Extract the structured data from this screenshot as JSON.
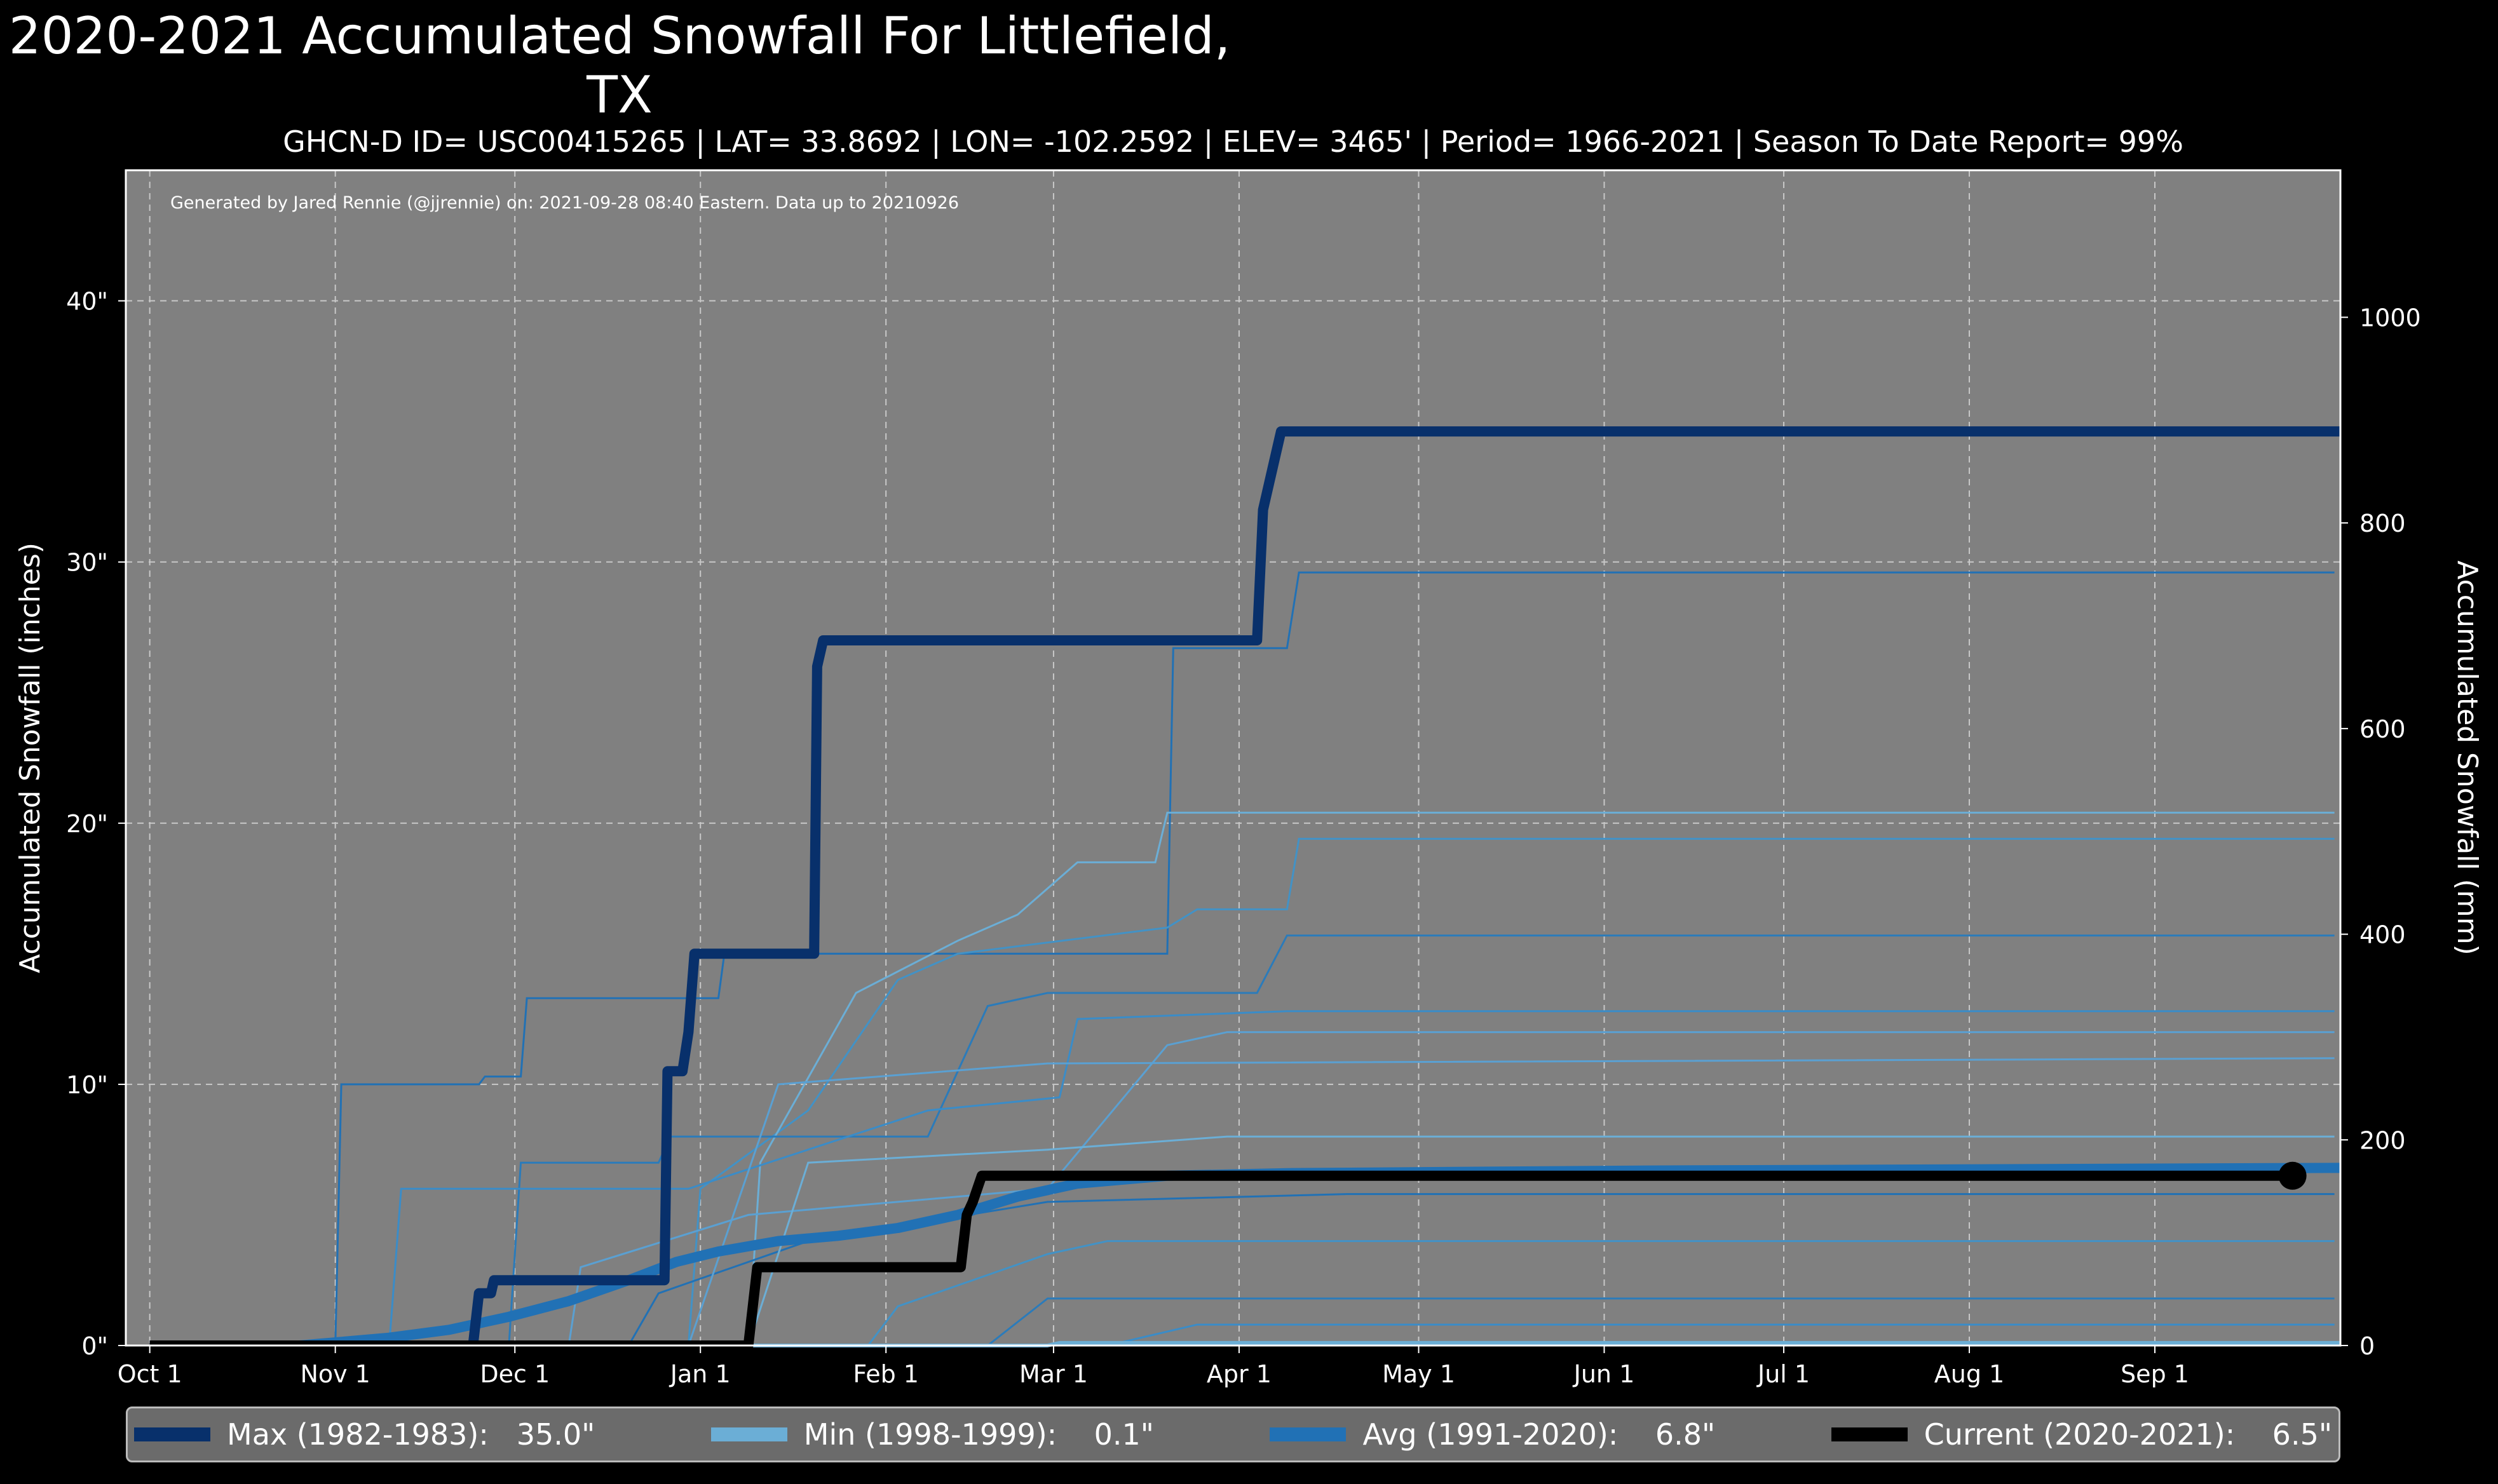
{
  "chart_data": {
    "type": "line",
    "title": "2020-2021 Accumulated Snowfall For Littlefield, TX",
    "subtitle": "GHCN-D ID= USC00415265 | LAT= 33.8692 | LON= -102.2592 | ELEV= 3465' | Period= 1966-2021 | Season To Date Report= 99%",
    "annotation": "Generated by Jared Rennie (@jjrennie) on: 2021-09-28 08:40 Eastern. Data up to 20210926",
    "ylabel": "Accumulated Snowfall (inches)",
    "ylabel_right": "Accumulated Snowfall (mm)",
    "x_unit": "days since Oct 1",
    "xlim": [
      -4,
      366
    ],
    "ylim": [
      0,
      45
    ],
    "grid": true,
    "legend_placement": "bottom",
    "x_ticks": [
      {
        "day": 0,
        "label": "Oct 1"
      },
      {
        "day": 31,
        "label": "Nov 1"
      },
      {
        "day": 61,
        "label": "Dec 1"
      },
      {
        "day": 92,
        "label": "Jan 1"
      },
      {
        "day": 123,
        "label": "Feb 1"
      },
      {
        "day": 151,
        "label": "Mar 1"
      },
      {
        "day": 182,
        "label": "Apr 1"
      },
      {
        "day": 212,
        "label": "May 1"
      },
      {
        "day": 243,
        "label": "Jun 1"
      },
      {
        "day": 273,
        "label": "Jul 1"
      },
      {
        "day": 304,
        "label": "Aug 1"
      },
      {
        "day": 335,
        "label": "Sep 1"
      }
    ],
    "y_ticks": [
      {
        "v": 0,
        "label": "0\""
      },
      {
        "v": 10,
        "label": "10\""
      },
      {
        "v": 20,
        "label": "20\""
      },
      {
        "v": 30,
        "label": "30\""
      },
      {
        "v": 40,
        "label": "40\""
      }
    ],
    "y_ticks_right_mm": [
      0,
      200,
      400,
      600,
      800,
      1000
    ],
    "other_years": [
      [
        [
          0,
          0
        ],
        [
          31,
          0
        ],
        [
          32,
          10
        ],
        [
          55,
          10
        ],
        [
          56,
          10.3
        ],
        [
          62,
          10.3
        ],
        [
          63,
          13.3
        ],
        [
          95,
          13.3
        ],
        [
          96,
          15
        ],
        [
          170,
          15
        ],
        [
          171,
          26.7
        ],
        [
          190,
          26.7
        ],
        [
          192,
          29.6
        ],
        [
          365,
          29.6
        ]
      ],
      [
        [
          0,
          0
        ],
        [
          90,
          0
        ],
        [
          92,
          6
        ],
        [
          110,
          9
        ],
        [
          125,
          14
        ],
        [
          135,
          15
        ],
        [
          170,
          16
        ],
        [
          175,
          16.7
        ],
        [
          190,
          16.7
        ],
        [
          192,
          19.4
        ],
        [
          365,
          19.4
        ]
      ],
      [
        [
          0,
          0
        ],
        [
          100,
          0
        ],
        [
          102,
          7
        ],
        [
          118,
          13.5
        ],
        [
          135,
          15.5
        ],
        [
          145,
          16.5
        ],
        [
          155,
          18.5
        ],
        [
          168,
          18.5
        ],
        [
          170,
          20.4
        ],
        [
          365,
          20.4
        ]
      ],
      [
        [
          0,
          0
        ],
        [
          60,
          0
        ],
        [
          62,
          7
        ],
        [
          85,
          7
        ],
        [
          87,
          8
        ],
        [
          130,
          8
        ],
        [
          140,
          13
        ],
        [
          150,
          13.5
        ],
        [
          165,
          13.5
        ],
        [
          185,
          13.5
        ],
        [
          190,
          15.7
        ],
        [
          365,
          15.7
        ]
      ],
      [
        [
          0,
          0
        ],
        [
          40,
          0
        ],
        [
          42,
          6
        ],
        [
          70,
          6
        ],
        [
          90,
          6
        ],
        [
          130,
          9
        ],
        [
          152,
          9.5
        ],
        [
          155,
          12.5
        ],
        [
          190,
          12.8
        ],
        [
          365,
          12.8
        ]
      ],
      [
        [
          0,
          0
        ],
        [
          70,
          0
        ],
        [
          72,
          3
        ],
        [
          100,
          5
        ],
        [
          150,
          6
        ],
        [
          170,
          11.5
        ],
        [
          180,
          12
        ],
        [
          365,
          12
        ]
      ],
      [
        [
          0,
          0
        ],
        [
          80,
          0
        ],
        [
          85,
          2
        ],
        [
          110,
          4
        ],
        [
          150,
          5.5
        ],
        [
          200,
          5.8
        ],
        [
          365,
          5.8
        ]
      ],
      [
        [
          0,
          0
        ],
        [
          120,
          0
        ],
        [
          125,
          1.5
        ],
        [
          150,
          3.5
        ],
        [
          160,
          4
        ],
        [
          365,
          4
        ]
      ],
      [
        [
          0,
          0
        ],
        [
          100,
          0
        ],
        [
          110,
          7
        ],
        [
          150,
          7.5
        ],
        [
          180,
          8
        ],
        [
          365,
          8
        ]
      ],
      [
        [
          0,
          0
        ],
        [
          140,
          0
        ],
        [
          150,
          1.8
        ],
        [
          365,
          1.8
        ]
      ],
      [
        [
          0,
          0
        ],
        [
          160,
          0
        ],
        [
          175,
          0.8
        ],
        [
          365,
          0.8
        ]
      ],
      [
        [
          0,
          0
        ],
        [
          90,
          0
        ],
        [
          105,
          10
        ],
        [
          150,
          10.8
        ],
        [
          365,
          11
        ]
      ]
    ],
    "series": [
      {
        "name": "Max (1982-1983)",
        "legend": "Max (1982-1983):   35.0\"",
        "color": "#08306b",
        "width": 16,
        "points": [
          [
            0,
            0
          ],
          [
            54,
            0
          ],
          [
            55,
            2
          ],
          [
            57,
            2
          ],
          [
            57.5,
            2.5
          ],
          [
            86,
            2.5
          ],
          [
            86.5,
            10.5
          ],
          [
            89,
            10.5
          ],
          [
            90,
            12
          ],
          [
            91,
            15
          ],
          [
            111,
            15
          ],
          [
            111.5,
            26
          ],
          [
            112.5,
            27
          ],
          [
            185,
            27
          ],
          [
            186,
            32
          ],
          [
            187,
            33
          ],
          [
            189,
            35
          ],
          [
            366,
            35
          ]
        ]
      },
      {
        "name": "Min (1998-1999)",
        "legend": "Min (1998-1999):    0.1\"",
        "color": "#6baed6",
        "width": 6,
        "points": [
          [
            0,
            0
          ],
          [
            150,
            0
          ],
          [
            152,
            0.1
          ],
          [
            366,
            0.1
          ]
        ]
      },
      {
        "name": "Avg (1991-2020)",
        "legend": "Avg (1991-2020):    6.8\"",
        "color": "#2171b5",
        "width": 16,
        "points": [
          [
            0,
            0
          ],
          [
            25,
            0
          ],
          [
            40,
            0.3
          ],
          [
            50,
            0.6
          ],
          [
            60,
            1.1
          ],
          [
            70,
            1.7
          ],
          [
            80,
            2.5
          ],
          [
            88,
            3.2
          ],
          [
            95,
            3.6
          ],
          [
            105,
            4
          ],
          [
            115,
            4.2
          ],
          [
            125,
            4.5
          ],
          [
            135,
            5
          ],
          [
            145,
            5.7
          ],
          [
            155,
            6.2
          ],
          [
            170,
            6.5
          ],
          [
            190,
            6.6
          ],
          [
            250,
            6.7
          ],
          [
            366,
            6.8
          ]
        ]
      },
      {
        "name": "Current (2020-2021)",
        "legend": "Current (2020-2021):    6.5\"",
        "color": "#000000",
        "width": 16,
        "points": [
          [
            0,
            0
          ],
          [
            100,
            0
          ],
          [
            101.5,
            3
          ],
          [
            135.5,
            3
          ],
          [
            136.5,
            5
          ],
          [
            137.5,
            5.5
          ],
          [
            139,
            6.5
          ],
          [
            358,
            6.5
          ]
        ],
        "end_marker": [
          358,
          6.5
        ]
      }
    ]
  }
}
